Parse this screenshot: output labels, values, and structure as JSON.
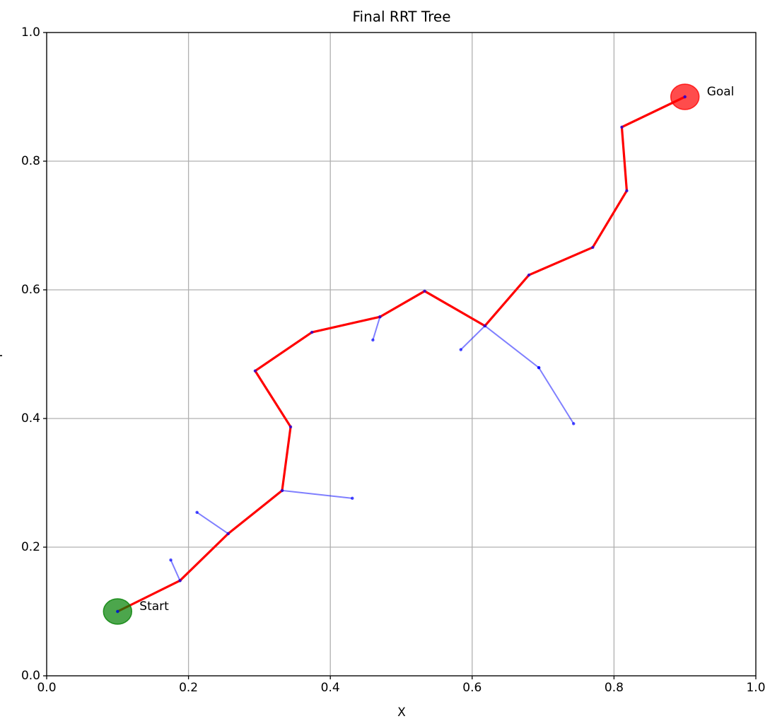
{
  "chart_data": {
    "type": "tree",
    "title": "Final RRT Tree",
    "xlabel": "X",
    "ylabel": "Y",
    "xlim": [
      0,
      1
    ],
    "ylim": [
      0,
      1
    ],
    "xticks": [
      {
        "value": 0,
        "label": "0.0"
      },
      0.2,
      0.4,
      0.6,
      0.8,
      {
        "value": 1,
        "label": "1.0"
      }
    ],
    "yticks": [
      {
        "value": 0,
        "label": "0.0"
      },
      0.2,
      0.4,
      0.6,
      0.8,
      {
        "value": 1,
        "label": "1.0"
      }
    ],
    "grid": true,
    "tree_color": "#0000ff",
    "edges": [
      {
        "x": [
          0.188,
          0.175
        ],
        "y": [
          0.148,
          0.18
        ]
      },
      {
        "x": [
          0.256,
          0.212
        ],
        "y": [
          0.221,
          0.254
        ]
      },
      {
        "x": [
          0.332,
          0.431
        ],
        "y": [
          0.288,
          0.276
        ]
      },
      {
        "x": [
          0.47,
          0.46
        ],
        "y": [
          0.558,
          0.522
        ]
      },
      {
        "x": [
          0.618,
          0.584
        ],
        "y": [
          0.544,
          0.507
        ]
      },
      {
        "x": [
          0.618,
          0.694
        ],
        "y": [
          0.544,
          0.479
        ]
      },
      {
        "x": [
          0.694,
          0.743
        ],
        "y": [
          0.479,
          0.392
        ]
      }
    ],
    "path": {
      "color": "#ff0000",
      "x": [
        0.1,
        0.188,
        0.256,
        0.332,
        0.344,
        0.294,
        0.374,
        0.47,
        0.533,
        0.618,
        0.68,
        0.77,
        0.818,
        0.811,
        0.9
      ],
      "y": [
        0.1,
        0.148,
        0.221,
        0.288,
        0.387,
        0.474,
        0.534,
        0.558,
        0.598,
        0.544,
        0.623,
        0.666,
        0.754,
        0.853,
        0.9
      ]
    },
    "start": {
      "x": 0.1,
      "y": 0.1,
      "label": "Start",
      "color": "#008000"
    },
    "goal": {
      "x": 0.9,
      "y": 0.9,
      "label": "Goal",
      "color": "#ff0000"
    }
  }
}
